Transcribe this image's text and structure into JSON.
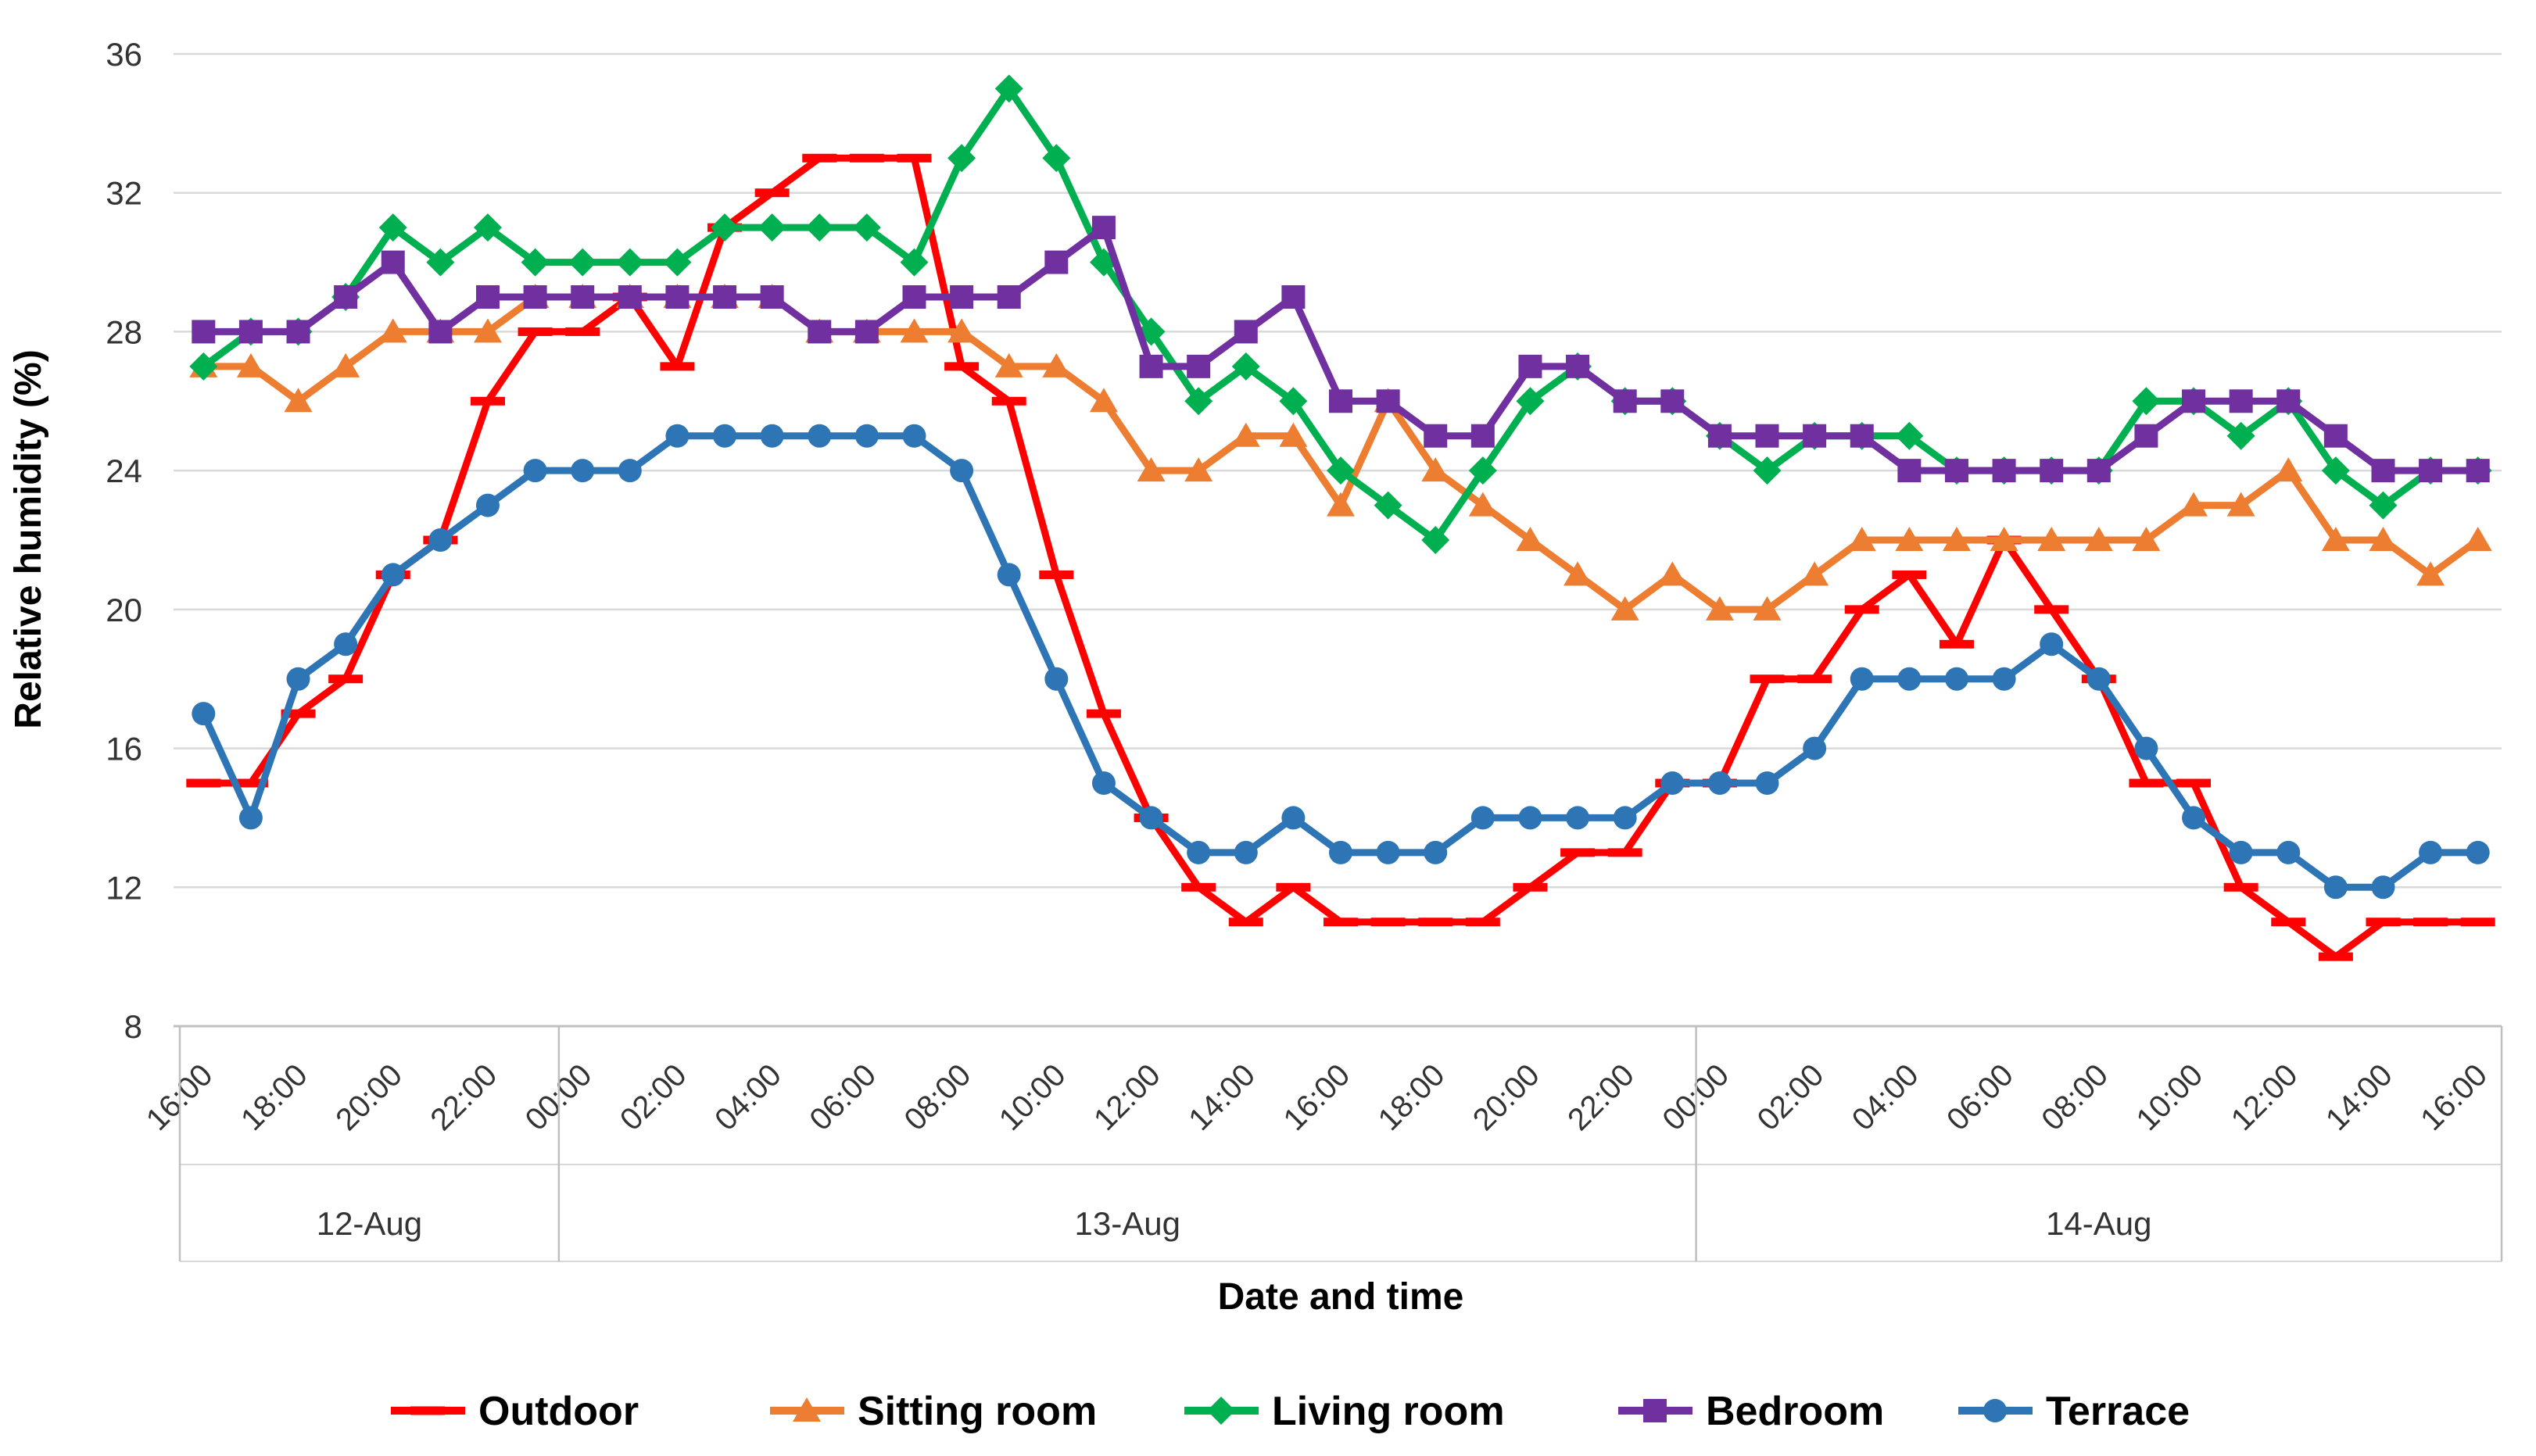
{
  "chart_data": {
    "type": "line",
    "title": "",
    "xlabel": "Date and time",
    "ylabel": "Relative humidity (%)",
    "ylim": [
      8,
      36
    ],
    "ytick_step": 4,
    "ytick_labels": [
      "8",
      "12",
      "16",
      "20",
      "24",
      "28",
      "32",
      "36"
    ],
    "grid": true,
    "legend_position": "bottom",
    "x_tick_every": 2,
    "categories": [
      "16:00",
      "17:00",
      "18:00",
      "19:00",
      "20:00",
      "21:00",
      "22:00",
      "23:00",
      "00:00",
      "01:00",
      "02:00",
      "03:00",
      "04:00",
      "05:00",
      "06:00",
      "07:00",
      "08:00",
      "09:00",
      "10:00",
      "11:00",
      "12:00",
      "13:00",
      "14:00",
      "15:00",
      "16:00",
      "17:00",
      "18:00",
      "19:00",
      "20:00",
      "21:00",
      "22:00",
      "23:00",
      "00:00",
      "01:00",
      "02:00",
      "03:00",
      "04:00",
      "05:00",
      "06:00",
      "07:00",
      "08:00",
      "09:00",
      "10:00",
      "11:00",
      "12:00",
      "13:00",
      "14:00",
      "15:00",
      "16:00"
    ],
    "day_groups": [
      {
        "label": "12-Aug",
        "start_index": 0,
        "end_index": 8
      },
      {
        "label": "13-Aug",
        "start_index": 8,
        "end_index": 32
      },
      {
        "label": "14-Aug",
        "start_index": 32,
        "end_index": 49
      }
    ],
    "series": [
      {
        "name": "Outdoor",
        "color": "#FF0000",
        "marker": "dash",
        "values": [
          15,
          15,
          17,
          18,
          21,
          22,
          26,
          28,
          28,
          29,
          27,
          31,
          32,
          33,
          33,
          33,
          27,
          26,
          21,
          17,
          14,
          12,
          11,
          12,
          11,
          11,
          11,
          11,
          12,
          13,
          13,
          15,
          15,
          18,
          18,
          20,
          21,
          19,
          22,
          20,
          18,
          15,
          15,
          12,
          11,
          10,
          11,
          11,
          11
        ]
      },
      {
        "name": "Sitting room",
        "color": "#ED7D31",
        "marker": "triangle",
        "values": [
          27,
          27,
          26,
          27,
          28,
          28,
          28,
          29,
          29,
          29,
          29,
          29,
          29,
          28,
          28,
          28,
          28,
          27,
          27,
          26,
          24,
          24,
          25,
          25,
          23,
          26,
          24,
          23,
          22,
          21,
          20,
          21,
          20,
          20,
          21,
          22,
          22,
          22,
          22,
          22,
          22,
          22,
          23,
          23,
          24,
          22,
          22,
          21,
          22
        ]
      },
      {
        "name": "Living room",
        "color": "#00B050",
        "marker": "diamond",
        "values": [
          27,
          28,
          28,
          29,
          31,
          30,
          31,
          30,
          30,
          30,
          30,
          31,
          31,
          31,
          31,
          30,
          33,
          35,
          33,
          30,
          28,
          26,
          27,
          26,
          24,
          23,
          22,
          24,
          26,
          27,
          26,
          26,
          25,
          24,
          25,
          25,
          25,
          24,
          24,
          24,
          24,
          26,
          26,
          25,
          26,
          24,
          23,
          24,
          24
        ]
      },
      {
        "name": "Bedroom",
        "color": "#7030A0",
        "marker": "square",
        "values": [
          28,
          28,
          28,
          29,
          30,
          28,
          29,
          29,
          29,
          29,
          29,
          29,
          29,
          28,
          28,
          29,
          29,
          29,
          30,
          31,
          27,
          27,
          28,
          29,
          26,
          26,
          25,
          25,
          27,
          27,
          26,
          26,
          25,
          25,
          25,
          25,
          24,
          24,
          24,
          24,
          24,
          25,
          26,
          26,
          26,
          25,
          24,
          24,
          24
        ]
      },
      {
        "name": "Terrace",
        "color": "#2E75B6",
        "marker": "circle",
        "values": [
          17,
          14,
          18,
          19,
          21,
          22,
          23,
          24,
          24,
          24,
          25,
          25,
          25,
          25,
          25,
          25,
          24,
          21,
          18,
          15,
          14,
          13,
          13,
          14,
          13,
          13,
          13,
          14,
          14,
          14,
          14,
          15,
          15,
          15,
          16,
          18,
          18,
          18,
          18,
          19,
          18,
          16,
          14,
          13,
          13,
          12,
          12,
          13,
          13
        ]
      }
    ],
    "style": {
      "gridline_color": "#D9D9D9",
      "axis_line_color": "#BFBFBF",
      "background": "#FFFFFF",
      "text_color": "#333333"
    }
  }
}
